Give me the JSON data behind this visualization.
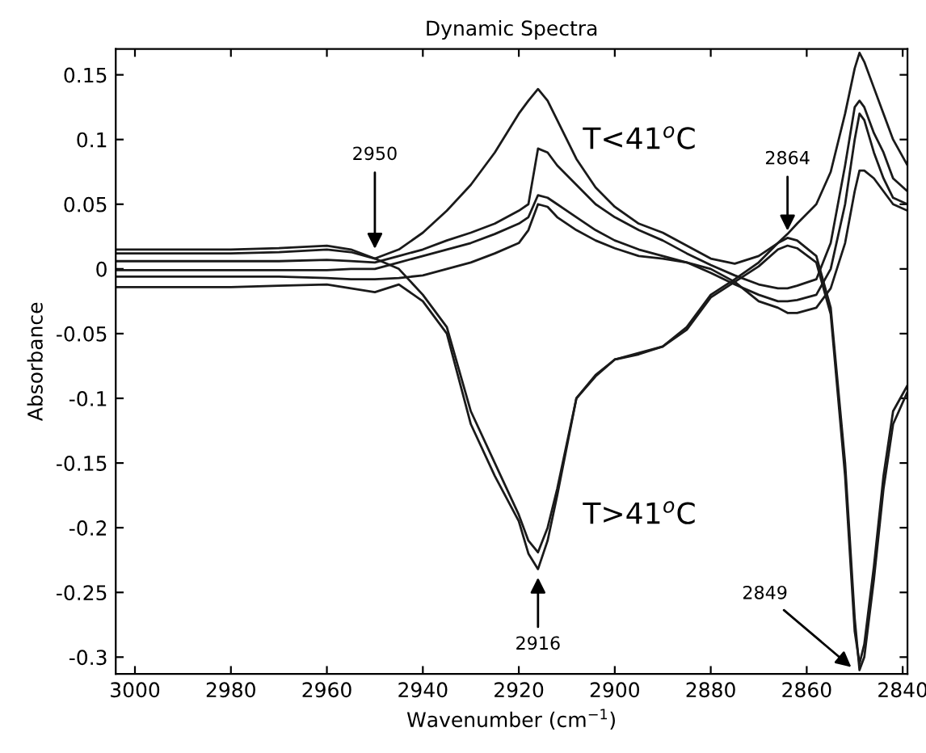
{
  "chart_data": {
    "type": "line",
    "title": "Dynamic Spectra",
    "xlabel": "Wavenumber (cm$^{−1}$)",
    "ylabel": "Absorbance",
    "x": [
      3004,
      2990,
      2980,
      2970,
      2960,
      2955,
      2950,
      2945,
      2940,
      2935,
      2930,
      2925,
      2920,
      2918,
      2916,
      2914,
      2912,
      2908,
      2904,
      2900,
      2895,
      2890,
      2885,
      2880,
      2875,
      2870,
      2866,
      2864,
      2862,
      2858,
      2855,
      2852,
      2850,
      2849,
      2848,
      2846,
      2844,
      2842,
      2839
    ],
    "series": [
      {
        "color": "#1a1a1a",
        "values": [
          0.012,
          0.012,
          0.012,
          0.013,
          0.015,
          0.013,
          0.008,
          0.015,
          0.028,
          0.045,
          0.065,
          0.09,
          0.12,
          0.13,
          0.139,
          0.13,
          0.115,
          0.085,
          0.063,
          0.048,
          0.035,
          0.028,
          0.018,
          0.008,
          0.004,
          0.01,
          0.02,
          0.027,
          0.035,
          0.05,
          0.075,
          0.12,
          0.155,
          0.167,
          0.16,
          0.14,
          0.12,
          0.1,
          0.08
        ]
      },
      {
        "color": "#1a1a1a",
        "values": [
          0.006,
          0.006,
          0.006,
          0.006,
          0.007,
          0.006,
          0.005,
          0.01,
          0.015,
          0.022,
          0.028,
          0.035,
          0.045,
          0.05,
          0.093,
          0.09,
          0.08,
          0.065,
          0.05,
          0.04,
          0.03,
          0.022,
          0.012,
          0.003,
          -0.005,
          -0.012,
          -0.015,
          -0.015,
          -0.013,
          -0.008,
          0.02,
          0.08,
          0.125,
          0.13,
          0.125,
          0.105,
          0.09,
          0.07,
          0.06
        ]
      },
      {
        "color": "#1a1a1a",
        "values": [
          -0.001,
          -0.001,
          -0.001,
          -0.001,
          -0.001,
          0.0,
          0.0,
          0.005,
          0.01,
          0.015,
          0.02,
          0.027,
          0.035,
          0.04,
          0.057,
          0.055,
          0.05,
          0.04,
          0.03,
          0.022,
          0.015,
          0.01,
          0.005,
          -0.003,
          -0.012,
          -0.02,
          -0.025,
          -0.025,
          -0.024,
          -0.02,
          0.0,
          0.05,
          0.1,
          0.12,
          0.115,
          0.09,
          0.07,
          0.055,
          0.05
        ]
      },
      {
        "color": "#1a1a1a",
        "values": [
          -0.006,
          -0.006,
          -0.006,
          -0.006,
          -0.007,
          -0.008,
          -0.008,
          -0.007,
          -0.005,
          0.0,
          0.005,
          0.012,
          0.02,
          0.03,
          0.05,
          0.048,
          0.04,
          0.03,
          0.022,
          0.016,
          0.01,
          0.008,
          0.005,
          0.0,
          -0.01,
          -0.025,
          -0.03,
          -0.034,
          -0.034,
          -0.03,
          -0.015,
          0.02,
          0.06,
          0.076,
          0.076,
          0.07,
          0.06,
          0.05,
          0.045
        ]
      },
      {
        "color": "#1a1a1a",
        "values": [
          0.015,
          0.015,
          0.015,
          0.016,
          0.018,
          0.015,
          0.008,
          0.0,
          -0.02,
          -0.045,
          -0.11,
          -0.15,
          -0.19,
          -0.21,
          -0.219,
          -0.2,
          -0.17,
          -0.1,
          -0.082,
          -0.07,
          -0.066,
          -0.06,
          -0.045,
          -0.02,
          -0.008,
          0.005,
          0.02,
          0.024,
          0.022,
          0.01,
          -0.03,
          -0.15,
          -0.27,
          -0.31,
          -0.3,
          -0.24,
          -0.17,
          -0.12,
          -0.095
        ]
      },
      {
        "color": "#1a1a1a",
        "values": [
          -0.014,
          -0.014,
          -0.014,
          -0.013,
          -0.012,
          -0.015,
          -0.018,
          -0.012,
          -0.025,
          -0.05,
          -0.12,
          -0.16,
          -0.195,
          -0.22,
          -0.232,
          -0.21,
          -0.175,
          -0.1,
          -0.083,
          -0.07,
          -0.065,
          -0.06,
          -0.047,
          -0.022,
          -0.01,
          0.002,
          0.015,
          0.018,
          0.016,
          0.005,
          -0.035,
          -0.16,
          -0.28,
          -0.305,
          -0.29,
          -0.23,
          -0.16,
          -0.11,
          -0.09
        ]
      }
    ],
    "xlim": [
      3004,
      2839
    ],
    "ylim": [
      -0.313,
      0.17
    ],
    "xticks": [
      3000,
      2980,
      2960,
      2940,
      2920,
      2900,
      2880,
      2860,
      2840
    ],
    "yticks": [
      -0.3,
      -0.25,
      -0.2,
      -0.15,
      -0.1,
      -0.05,
      0,
      0.05,
      0.1,
      0.15
    ],
    "grid": false,
    "legend": false,
    "marker": "none",
    "line_style": "solid",
    "annotations": [
      {
        "text": "2950",
        "x": 2950,
        "y": 0.012
      },
      {
        "text": "2864",
        "x": 2864,
        "y": 0.026
      },
      {
        "text": "2916",
        "x": 2916,
        "y": -0.235
      },
      {
        "text": "2849",
        "x": 2850,
        "y": -0.31
      },
      "T<41$^{o}$C",
      "T>41$^{o}$C"
    ]
  }
}
